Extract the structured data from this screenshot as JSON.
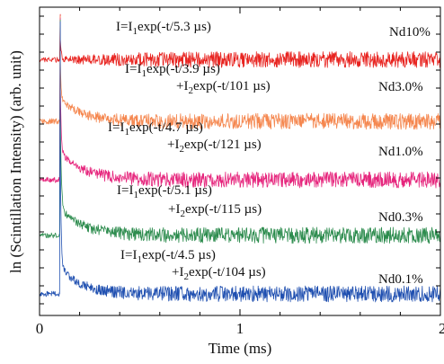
{
  "chart_data": {
    "type": "line",
    "title": "",
    "xlabel": "Time (ms)",
    "ylabel": "ln (Scintillation Intensity) (arb. unit)",
    "xlim": [
      0,
      2
    ],
    "x_ticks": [
      {
        "value": 0,
        "label": "0"
      },
      {
        "value": 1,
        "label": "1"
      },
      {
        "value": 2,
        "label": "2"
      }
    ],
    "y_scale": "log",
    "y_tick_labels": "none",
    "grid": false,
    "legend": "inline labels at right",
    "pulse_time_ms": 0.1,
    "series": [
      {
        "name": "Nd10%",
        "color": "#e8231f",
        "fit_lines": [
          "I=I1exp(-t/5.3 µs)"
        ],
        "tau_fast_us": 5.3,
        "tau_slow_us": null,
        "baseline_level": 0.17,
        "amplitude": 0.02
      },
      {
        "name": "Nd3.0%",
        "color": "#f5874f",
        "fit_lines": [
          "I=I1exp(-t/3.9 µs)",
          "+I2exp(-t/101 µs)"
        ],
        "tau_fast_us": 3.9,
        "tau_slow_us": 101,
        "baseline_level": 0.37,
        "amplitude": 0.08
      },
      {
        "name": "Nd1.0%",
        "color": "#e6267d",
        "fit_lines": [
          "I=I1exp(-t/4.7 µs)",
          "+I2exp(-t/121 µs)"
        ],
        "tau_fast_us": 4.7,
        "tau_slow_us": 121,
        "baseline_level": 0.56,
        "amplitude": 0.09
      },
      {
        "name": "Nd0.3%",
        "color": "#2d8c4e",
        "fit_lines": [
          "I=I1exp(-t/5.1 µs)",
          "+I2exp(-t/115 µs)"
        ],
        "tau_fast_us": 5.1,
        "tau_slow_us": 115,
        "baseline_level": 0.74,
        "amplitude": 0.09
      },
      {
        "name": "Nd0.1%",
        "color": "#1f4fb0",
        "fit_lines": [
          "I=I1exp(-t/4.5 µs)",
          "+I2exp(-t/104 µs)"
        ],
        "tau_fast_us": 4.5,
        "tau_slow_us": 104,
        "baseline_level": 0.93,
        "amplitude": 0.09
      }
    ]
  }
}
